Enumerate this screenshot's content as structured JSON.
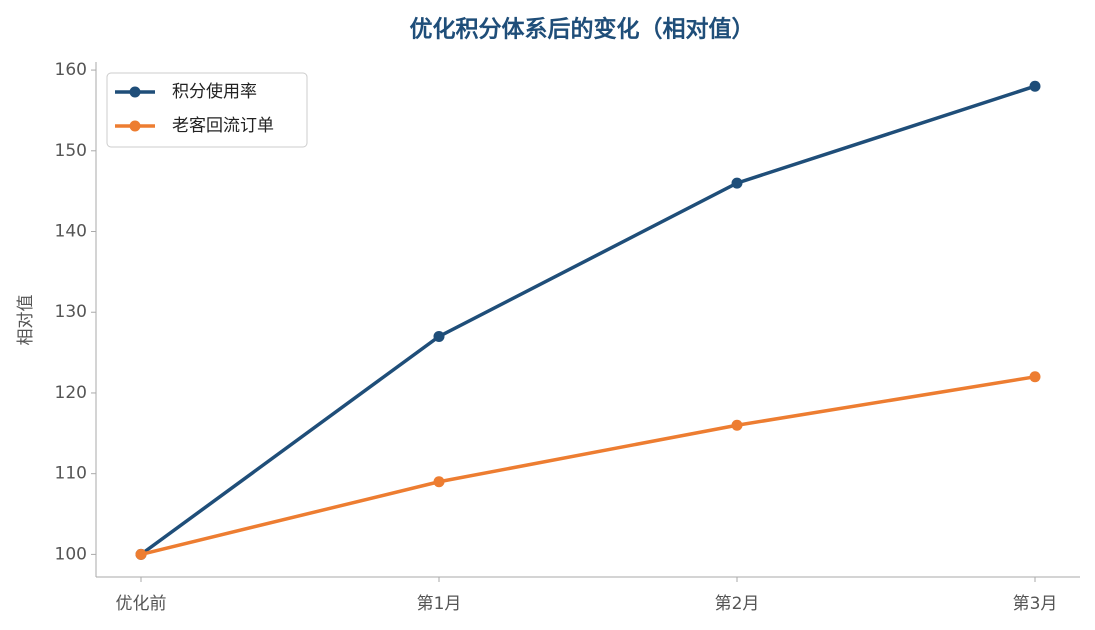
{
  "chart_data": {
    "type": "line",
    "title": "优化积分体系后的变化（相对值）",
    "y_label": "相对值",
    "categories": [
      "优化前",
      "第1月",
      "第2月",
      "第3月"
    ],
    "series": [
      {
        "name": "积分使用率",
        "color": "#1f4e79",
        "values": [
          100,
          127,
          146,
          158
        ]
      },
      {
        "name": "老客回流订单",
        "color": "#ed7d31",
        "values": [
          100,
          109,
          116,
          122
        ]
      }
    ],
    "ylim": [
      97.2,
      161
    ],
    "yticks": [
      100,
      110,
      120,
      130,
      140,
      150,
      160
    ],
    "grid": false,
    "legend": "upper left"
  }
}
